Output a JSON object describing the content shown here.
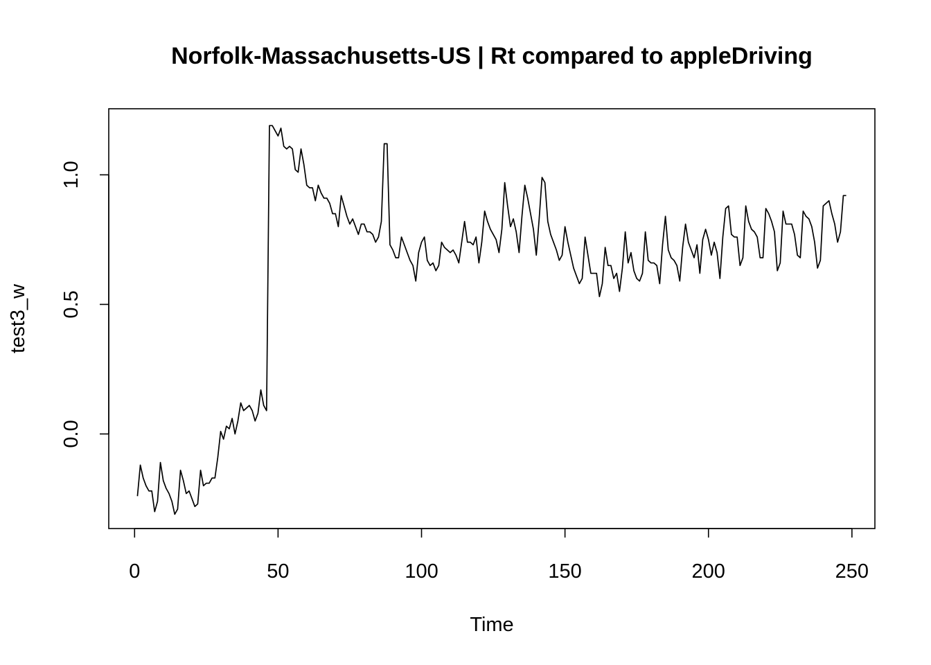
{
  "chart_data": {
    "type": "line",
    "title": "Norfolk-Massachusetts-US | Rt compared to appleDriving",
    "xlabel": "Time",
    "ylabel": "test3_w",
    "xlim": [
      -9,
      258
    ],
    "ylim": [
      -0.365,
      1.255
    ],
    "xticks": [
      0,
      50,
      100,
      150,
      200,
      250
    ],
    "xtick_labels": [
      "0",
      "50",
      "100",
      "150",
      "200",
      "250"
    ],
    "yticks": [
      0.0,
      0.5,
      1.0
    ],
    "ytick_labels": [
      "0.0",
      "0.5",
      "1.0"
    ],
    "grid": false,
    "legend": "none",
    "line_color": "#000000",
    "series": [
      {
        "values": [
          -0.24,
          -0.12,
          -0.17,
          -0.2,
          -0.22,
          -0.22,
          -0.3,
          -0.26,
          -0.11,
          -0.18,
          -0.21,
          -0.23,
          -0.26,
          -0.31,
          -0.29,
          -0.14,
          -0.18,
          -0.23,
          -0.22,
          -0.25,
          -0.28,
          -0.27,
          -0.14,
          -0.2,
          -0.19,
          -0.19,
          -0.17,
          -0.17,
          -0.09,
          0.01,
          -0.02,
          0.03,
          0.02,
          0.06,
          0.0,
          0.05,
          0.12,
          0.09,
          0.1,
          0.11,
          0.09,
          0.05,
          0.08,
          0.17,
          0.11,
          0.09,
          1.19,
          1.19,
          1.17,
          1.15,
          1.18,
          1.11,
          1.1,
          1.11,
          1.1,
          1.02,
          1.01,
          1.1,
          1.04,
          0.96,
          0.95,
          0.95,
          0.9,
          0.96,
          0.93,
          0.91,
          0.91,
          0.89,
          0.85,
          0.85,
          0.8,
          0.92,
          0.88,
          0.84,
          0.81,
          0.83,
          0.8,
          0.77,
          0.81,
          0.81,
          0.78,
          0.78,
          0.77,
          0.74,
          0.76,
          0.82,
          1.12,
          1.12,
          0.73,
          0.71,
          0.68,
          0.68,
          0.76,
          0.73,
          0.7,
          0.67,
          0.65,
          0.59,
          0.7,
          0.74,
          0.76,
          0.67,
          0.65,
          0.66,
          0.63,
          0.65,
          0.74,
          0.72,
          0.71,
          0.7,
          0.71,
          0.69,
          0.66,
          0.74,
          0.82,
          0.74,
          0.74,
          0.73,
          0.76,
          0.66,
          0.74,
          0.86,
          0.82,
          0.79,
          0.77,
          0.75,
          0.7,
          0.79,
          0.97,
          0.88,
          0.8,
          0.83,
          0.78,
          0.7,
          0.84,
          0.96,
          0.91,
          0.85,
          0.79,
          0.69,
          0.83,
          0.99,
          0.97,
          0.82,
          0.77,
          0.74,
          0.71,
          0.67,
          0.69,
          0.8,
          0.74,
          0.69,
          0.64,
          0.61,
          0.58,
          0.6,
          0.76,
          0.69,
          0.62,
          0.62,
          0.62,
          0.53,
          0.58,
          0.72,
          0.65,
          0.65,
          0.6,
          0.62,
          0.55,
          0.64,
          0.78,
          0.66,
          0.7,
          0.63,
          0.6,
          0.59,
          0.62,
          0.78,
          0.67,
          0.66,
          0.66,
          0.65,
          0.58,
          0.73,
          0.84,
          0.71,
          0.68,
          0.67,
          0.65,
          0.59,
          0.72,
          0.81,
          0.74,
          0.71,
          0.68,
          0.73,
          0.62,
          0.75,
          0.79,
          0.75,
          0.69,
          0.74,
          0.7,
          0.6,
          0.76,
          0.87,
          0.88,
          0.77,
          0.76,
          0.76,
          0.65,
          0.68,
          0.88,
          0.82,
          0.79,
          0.78,
          0.76,
          0.68,
          0.68,
          0.87,
          0.85,
          0.82,
          0.78,
          0.63,
          0.66,
          0.86,
          0.81,
          0.81,
          0.81,
          0.77,
          0.69,
          0.68,
          0.86,
          0.84,
          0.83,
          0.8,
          0.74,
          0.64,
          0.67,
          0.88,
          0.89,
          0.9,
          0.85,
          0.81,
          0.74,
          0.78,
          0.92,
          0.92
        ]
      }
    ]
  }
}
